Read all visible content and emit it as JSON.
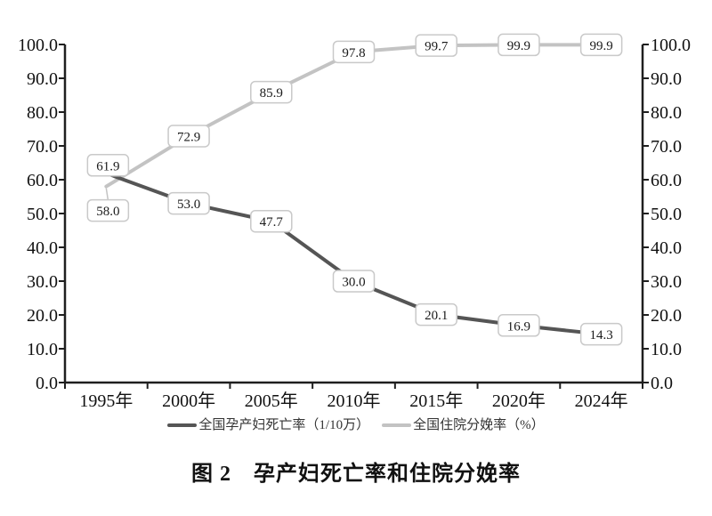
{
  "chart_data": {
    "type": "line",
    "title": "图 2　孕产妇死亡率和住院分娩率",
    "categories": [
      "1995年",
      "2000年",
      "2005年",
      "2010年",
      "2015年",
      "2020年",
      "2024年"
    ],
    "series": [
      {
        "name": "全国孕产妇死亡率（1/10万）",
        "color": "#555555",
        "values": [
          61.9,
          53.0,
          47.7,
          30.0,
          20.1,
          16.9,
          14.3
        ],
        "point_labels": [
          "61.9",
          "53.0",
          "47.7",
          "30.0",
          "20.1",
          "16.9",
          "14.3"
        ],
        "label_offsets": [
          [
            2,
            -9
          ],
          [
            0,
            0
          ],
          [
            0,
            0
          ],
          [
            0,
            0
          ],
          [
            0,
            0
          ],
          [
            0,
            0
          ],
          [
            0,
            0
          ]
        ],
        "leader_points": []
      },
      {
        "name": "全国住院分娩率（%）",
        "color": "#c3c3c3",
        "values": [
          58.0,
          72.9,
          85.9,
          97.8,
          99.7,
          99.9,
          99.9
        ],
        "point_labels": [
          "58.0",
          "72.9",
          "85.9",
          "97.8",
          "99.7",
          "99.9",
          "99.9"
        ],
        "label_offsets": [
          [
            2,
            27
          ],
          [
            0,
            0
          ],
          [
            0,
            0
          ],
          [
            0,
            0
          ],
          [
            0,
            0
          ],
          [
            0,
            0
          ],
          [
            0,
            0
          ]
        ],
        "leader_points": [
          0
        ]
      }
    ],
    "y_ticks": [
      "0.0",
      "10.0",
      "20.0",
      "30.0",
      "40.0",
      "50.0",
      "60.0",
      "70.0",
      "80.0",
      "90.0",
      "100.0"
    ],
    "ylim": [
      0,
      100
    ],
    "y_axis_left": true,
    "y_axis_right": true,
    "grid": false,
    "legend_position": "bottom",
    "colors": {
      "axis": "#1f1f1f",
      "tick_label": "#111111",
      "label_box_fill": "#ffffff",
      "label_box_border": "#c9c9c9",
      "label_text": "#1a1a1a"
    }
  }
}
